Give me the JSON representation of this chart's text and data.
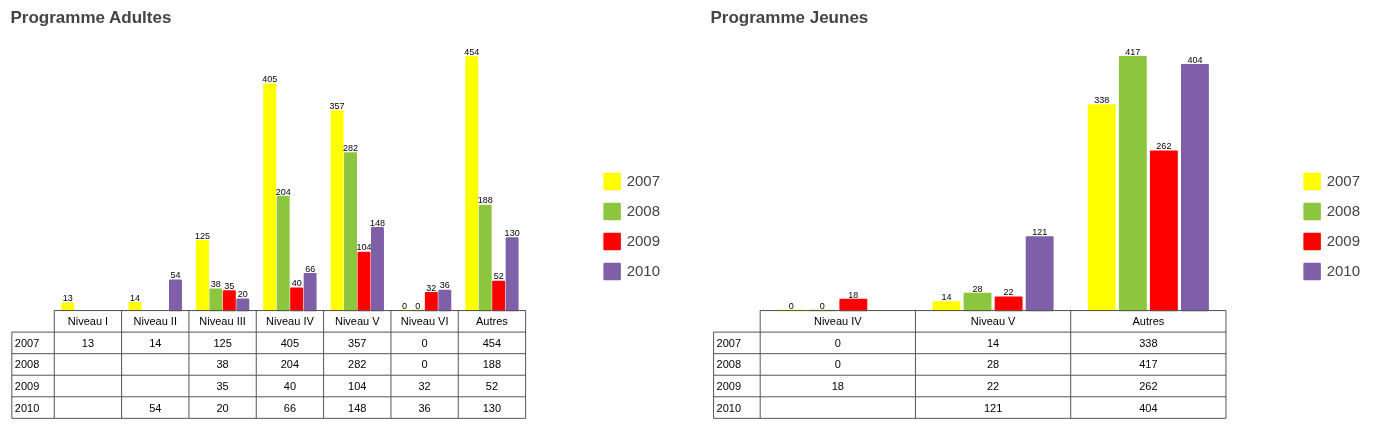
{
  "chart_data": [
    {
      "type": "bar",
      "title": "Programme Adultes",
      "categories": [
        "Niveau I",
        "Niveau II",
        "Niveau III",
        "Niveau IV",
        "Niveau V",
        "Niveau VI",
        "Autres"
      ],
      "data_labels": true,
      "legend": "right",
      "series": [
        {
          "name": "2007",
          "color": "#ffff00",
          "values": [
            13,
            14,
            125,
            405,
            357,
            0,
            454
          ]
        },
        {
          "name": "2008",
          "color": "#8cc63f",
          "values": [
            null,
            null,
            38,
            204,
            282,
            0,
            188
          ]
        },
        {
          "name": "2009",
          "color": "#ff0000",
          "values": [
            null,
            null,
            35,
            40,
            104,
            32,
            52
          ]
        },
        {
          "name": "2010",
          "color": "#7f5fa8",
          "values": [
            null,
            54,
            20,
            66,
            148,
            36,
            130
          ]
        }
      ],
      "annotations": [
        "13",
        "14",
        "125",
        "405",
        "357",
        "0",
        "454",
        "38",
        "204",
        "282",
        "0",
        "188",
        "35",
        "40",
        "104",
        "32",
        "52",
        "54",
        "20",
        "66",
        "148",
        "36",
        "130"
      ]
    },
    {
      "type": "bar",
      "title": "Programme Jeunes",
      "categories": [
        "Niveau IV",
        "Niveau V",
        "Autres"
      ],
      "data_labels": true,
      "legend": "right",
      "series": [
        {
          "name": "2007",
          "color": "#ffff00",
          "values": [
            0,
            14,
            338
          ]
        },
        {
          "name": "2008",
          "color": "#8cc63f",
          "values": [
            0,
            28,
            417
          ]
        },
        {
          "name": "2009",
          "color": "#ff0000",
          "values": [
            18,
            22,
            262
          ]
        },
        {
          "name": "2010",
          "color": "#7f5fa8",
          "values": [
            null,
            121,
            404
          ]
        }
      ],
      "annotations": [
        "0",
        "14",
        "338",
        "0",
        "28",
        "417",
        "18",
        "22",
        "262",
        "121",
        "404"
      ]
    }
  ]
}
